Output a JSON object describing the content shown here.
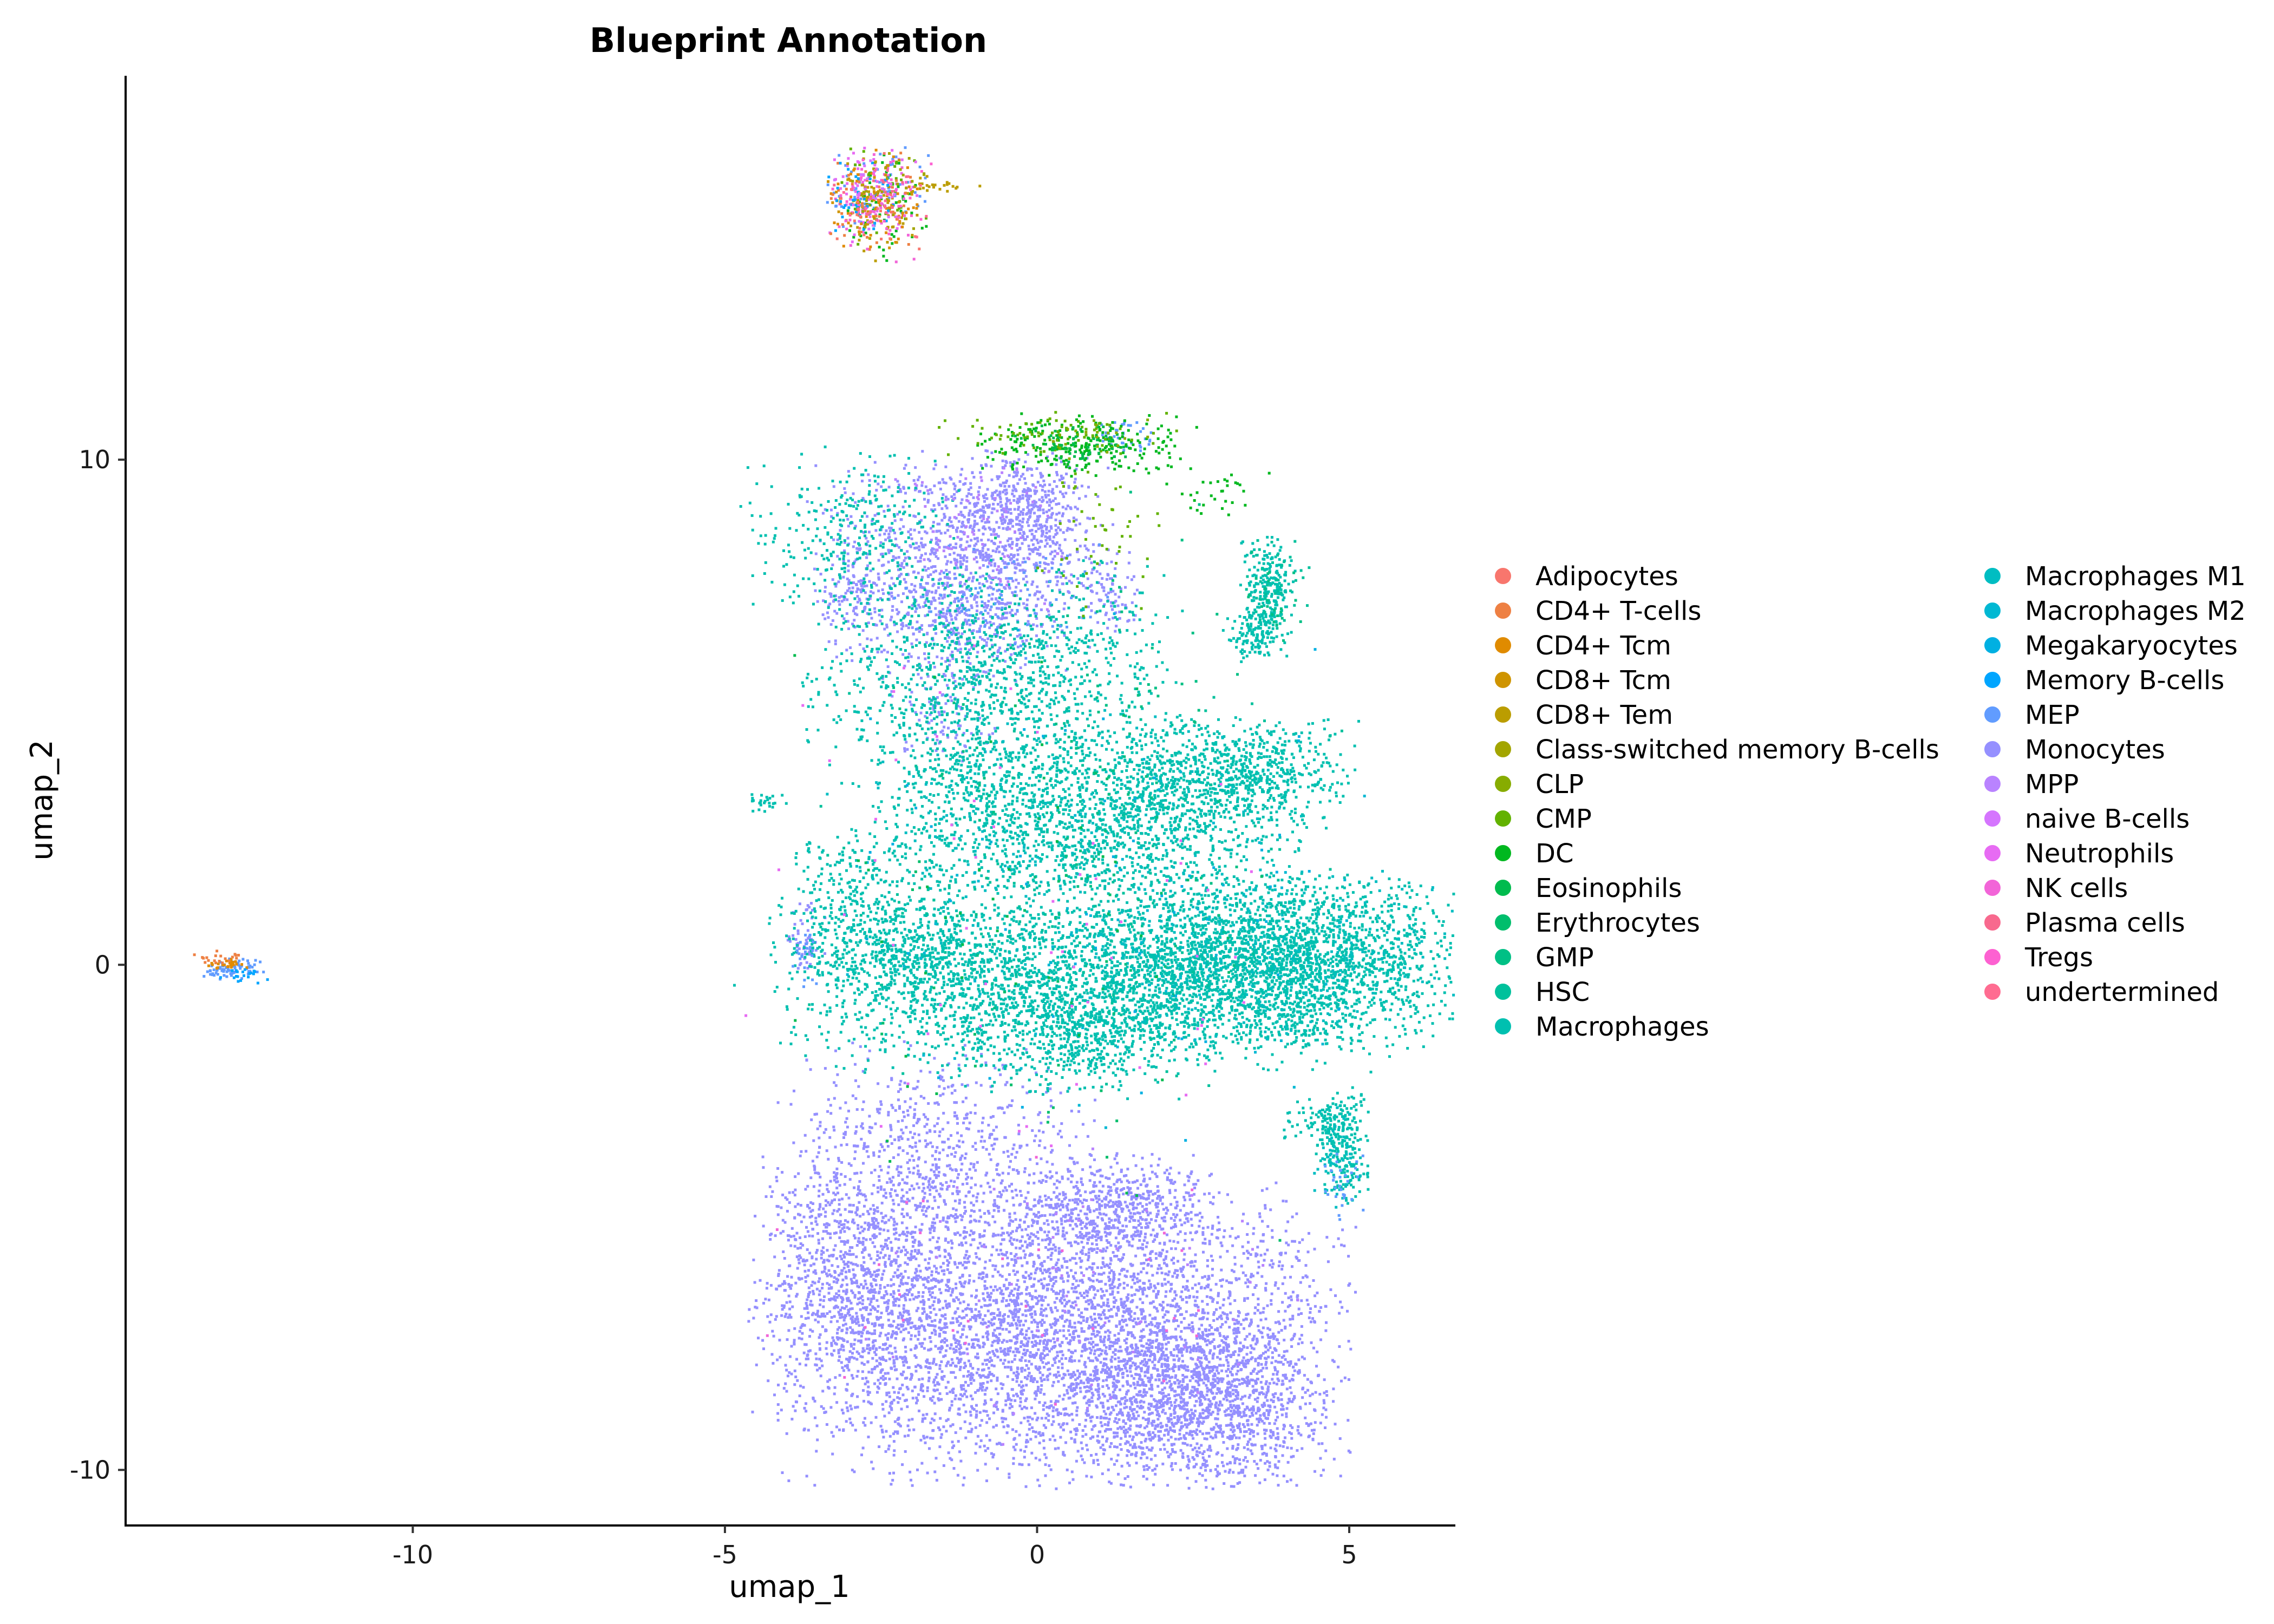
{
  "chart_data": {
    "type": "scatter",
    "title": "Blueprint Annotation",
    "xlabel": "umap_1",
    "ylabel": "umap_2",
    "xlim": [
      -14.6,
      6.7
    ],
    "ylim": [
      -11.1,
      17.6
    ],
    "x_ticks": [
      {
        "value": -10,
        "label": "-10"
      },
      {
        "value": -5,
        "label": "-5"
      },
      {
        "value": 0,
        "label": "0"
      },
      {
        "value": 5,
        "label": "5"
      }
    ],
    "y_ticks": [
      {
        "value": 10,
        "label": "10"
      },
      {
        "value": 0,
        "label": "0"
      },
      {
        "value": -10,
        "label": "-10"
      }
    ],
    "grid": false,
    "legend_position": "right",
    "legend_columns": 2,
    "legend": [
      {
        "label": "Adipocytes",
        "color": "#F8766D"
      },
      {
        "label": "CD4+ T-cells",
        "color": "#EE8043"
      },
      {
        "label": "CD4+ Tcm",
        "color": "#E08B00"
      },
      {
        "label": "CD8+ Tcm",
        "color": "#CF9400"
      },
      {
        "label": "CD8+ Tem",
        "color": "#BB9D00"
      },
      {
        "label": "Class-switched memory B-cells",
        "color": "#A3A500"
      },
      {
        "label": "CLP",
        "color": "#87AC00"
      },
      {
        "label": "CMP",
        "color": "#62B200"
      },
      {
        "label": "DC",
        "color": "#00B81F"
      },
      {
        "label": "Eosinophils",
        "color": "#00BB4E"
      },
      {
        "label": "Erythrocytes",
        "color": "#00BE6C"
      },
      {
        "label": "GMP",
        "color": "#00C085"
      },
      {
        "label": "HSC",
        "color": "#00C19C"
      },
      {
        "label": "Macrophages",
        "color": "#00C0B0"
      },
      {
        "label": "Macrophages M1",
        "color": "#00BDC2"
      },
      {
        "label": "Macrophages M2",
        "color": "#00B8D3"
      },
      {
        "label": "Megakaryocytes",
        "color": "#00B0E2"
      },
      {
        "label": "Memory B-cells",
        "color": "#00A5FF"
      },
      {
        "label": "MEP",
        "color": "#619CFF"
      },
      {
        "label": "Monocytes",
        "color": "#9590FF"
      },
      {
        "label": "MPP",
        "color": "#B983FF"
      },
      {
        "label": "naive B-cells",
        "color": "#D575FE"
      },
      {
        "label": "Neutrophils",
        "color": "#E76BF3"
      },
      {
        "label": "NK cells",
        "color": "#F265D8"
      },
      {
        "label": "Plasma cells",
        "color": "#F8698E"
      },
      {
        "label": "Tregs",
        "color": "#FD61D1"
      },
      {
        "label": "undertermined",
        "color": "#FF6C91"
      }
    ],
    "series": [
      {
        "name": "Monocytes",
        "clusters": [
          {
            "cx": 0.5,
            "cy": -7.3,
            "sx": 2.1,
            "sy": 1.4,
            "n": 4200
          },
          {
            "cx": 2.7,
            "cy": -8.6,
            "sx": 0.9,
            "sy": 0.8,
            "n": 1200
          },
          {
            "cx": -2.9,
            "cy": -6.4,
            "sx": 0.8,
            "sy": 1.3,
            "n": 1000
          },
          {
            "cx": -1.6,
            "cy": -3.7,
            "sx": 1.2,
            "sy": 1.0,
            "n": 700
          },
          {
            "cx": 1.3,
            "cy": -4.8,
            "sx": 0.8,
            "sy": 0.5,
            "n": 500
          },
          {
            "cx": -1.2,
            "cy": 8.2,
            "sx": 1.1,
            "sy": 0.9,
            "n": 900
          },
          {
            "cx": -0.2,
            "cy": 8.9,
            "sx": 0.5,
            "sy": 0.6,
            "n": 400
          },
          {
            "cx": -1.4,
            "cy": 6.7,
            "sx": 0.9,
            "sy": 0.6,
            "n": 300
          },
          {
            "cx": -3.0,
            "cy": 7.2,
            "sx": 0.2,
            "sy": 0.5,
            "n": 80
          },
          {
            "cx": 1.2,
            "cy": 7.4,
            "sx": 0.2,
            "sy": 0.4,
            "n": 70
          },
          {
            "cx": -3.7,
            "cy": 0.4,
            "sx": 0.15,
            "sy": 0.4,
            "n": 60
          },
          {
            "cx": -1.5,
            "cy": 4.9,
            "sx": 0.4,
            "sy": 0.4,
            "n": 80
          }
        ]
      },
      {
        "name": "Macrophages",
        "clusters": [
          {
            "cx": 3.9,
            "cy": 0.1,
            "sx": 1.3,
            "sy": 0.8,
            "n": 2200
          },
          {
            "cx": 0.8,
            "cy": -0.4,
            "sx": 2.3,
            "sy": 0.8,
            "n": 2400
          },
          {
            "cx": 0.8,
            "cy": 2.9,
            "sx": 1.6,
            "sy": 0.9,
            "n": 1600
          },
          {
            "cx": -0.7,
            "cy": 5.7,
            "sx": 1.4,
            "sy": 1.1,
            "n": 1200
          },
          {
            "cx": 3.2,
            "cy": 3.8,
            "sx": 0.9,
            "sy": 0.5,
            "n": 700
          },
          {
            "cx": -2.8,
            "cy": 1.1,
            "sx": 0.7,
            "sy": 0.8,
            "n": 350
          },
          {
            "cx": -1.8,
            "cy": 0.2,
            "sx": 1.0,
            "sy": 0.5,
            "n": 400
          },
          {
            "cx": 0.6,
            "cy": -1.6,
            "sx": 0.9,
            "sy": 0.5,
            "n": 350
          },
          {
            "cx": 3.7,
            "cy": 7.3,
            "sx": 0.2,
            "sy": 0.55,
            "n": 260
          },
          {
            "cx": 3.4,
            "cy": 6.5,
            "sx": 0.2,
            "sy": 0.3,
            "n": 80
          },
          {
            "cx": 4.9,
            "cy": -3.6,
            "sx": 0.2,
            "sy": 0.55,
            "n": 220
          },
          {
            "cx": 4.5,
            "cy": -3.1,
            "sx": 0.3,
            "sy": 0.2,
            "n": 70
          },
          {
            "cx": -4.3,
            "cy": 3.2,
            "sx": 0.15,
            "sy": 0.1,
            "n": 25
          },
          {
            "cx": -3.0,
            "cy": 8.5,
            "sx": 0.8,
            "sy": 0.8,
            "n": 300
          }
        ]
      },
      {
        "name": "Macrophages M1",
        "clusters": [
          {
            "cx": 3.8,
            "cy": 0.2,
            "sx": 1.4,
            "sy": 0.8,
            "n": 300
          },
          {
            "cx": 0.5,
            "cy": 2.5,
            "sx": 1.8,
            "sy": 1.4,
            "n": 250
          },
          {
            "cx": 4.8,
            "cy": -3.8,
            "sx": 0.2,
            "sy": 0.5,
            "n": 40
          }
        ]
      },
      {
        "name": "HSC",
        "clusters": [
          {
            "cx": 0.6,
            "cy": 1.5,
            "sx": 2.0,
            "sy": 2.0,
            "n": 200
          },
          {
            "cx": 3.8,
            "cy": 7.5,
            "sx": 0.3,
            "sy": 0.5,
            "n": 40
          }
        ]
      },
      {
        "name": "MEP",
        "clusters": [
          {
            "cx": -12.9,
            "cy": -0.1,
            "sx": 0.25,
            "sy": 0.1,
            "n": 70
          },
          {
            "cx": -0.6,
            "cy": 7.2,
            "sx": 0.8,
            "sy": 0.6,
            "n": 80
          },
          {
            "cx": 4.9,
            "cy": -4.4,
            "sx": 0.15,
            "sy": 0.3,
            "n": 30
          },
          {
            "cx": -3.7,
            "cy": 0.2,
            "sx": 0.1,
            "sy": 0.3,
            "n": 20
          },
          {
            "cx": 1.4,
            "cy": 10.5,
            "sx": 0.3,
            "sy": 0.15,
            "n": 40
          },
          {
            "cx": -2.6,
            "cy": 15.3,
            "sx": 0.4,
            "sy": 0.4,
            "n": 80
          }
        ]
      },
      {
        "name": "DC",
        "clusters": [
          {
            "cx": 0.8,
            "cy": 10.3,
            "sx": 0.8,
            "sy": 0.3,
            "n": 260
          },
          {
            "cx": 2.9,
            "cy": 9.3,
            "sx": 0.4,
            "sy": 0.2,
            "n": 30
          },
          {
            "cx": -2.4,
            "cy": 15.0,
            "sx": 0.4,
            "sy": 0.5,
            "n": 50
          }
        ]
      },
      {
        "name": "CMP",
        "clusters": [
          {
            "cx": 0.3,
            "cy": 10.5,
            "sx": 0.9,
            "sy": 0.2,
            "n": 80
          },
          {
            "cx": 0.9,
            "cy": 8.6,
            "sx": 0.5,
            "sy": 0.8,
            "n": 50
          },
          {
            "cx": -2.5,
            "cy": 15.1,
            "sx": 0.35,
            "sy": 0.5,
            "n": 40
          }
        ]
      },
      {
        "name": "Neutrophils",
        "clusters": [
          {
            "cx": -2.6,
            "cy": 15.3,
            "sx": 0.35,
            "sy": 0.45,
            "n": 80
          },
          {
            "cx": -0.5,
            "cy": 1.0,
            "sx": 2.0,
            "sy": 2.5,
            "n": 60
          }
        ]
      },
      {
        "name": "CD4+ Tcm",
        "clusters": [
          {
            "cx": -2.5,
            "cy": 15.2,
            "sx": 0.4,
            "sy": 0.5,
            "n": 60
          },
          {
            "cx": -13.0,
            "cy": 0.0,
            "sx": 0.2,
            "sy": 0.08,
            "n": 25
          }
        ]
      },
      {
        "name": "CD8+ Tem",
        "clusters": [
          {
            "cx": -2.6,
            "cy": 15.0,
            "sx": 0.35,
            "sy": 0.5,
            "n": 50
          },
          {
            "cx": -1.5,
            "cy": 15.4,
            "sx": 0.3,
            "sy": 0.1,
            "n": 25
          }
        ]
      },
      {
        "name": "CD4+ T-cells",
        "clusters": [
          {
            "cx": -2.7,
            "cy": 15.1,
            "sx": 0.35,
            "sy": 0.5,
            "n": 50
          },
          {
            "cx": -13.1,
            "cy": 0.1,
            "sx": 0.2,
            "sy": 0.08,
            "n": 20
          }
        ]
      },
      {
        "name": "NK cells",
        "clusters": [
          {
            "cx": -2.6,
            "cy": 15.0,
            "sx": 0.35,
            "sy": 0.55,
            "n": 40
          },
          {
            "cx": 0.0,
            "cy": -6.5,
            "sx": 2.0,
            "sy": 1.5,
            "n": 30
          }
        ]
      },
      {
        "name": "Memory B-cells",
        "clusters": [
          {
            "cx": -2.8,
            "cy": 15.2,
            "sx": 0.3,
            "sy": 0.4,
            "n": 40
          },
          {
            "cx": -12.7,
            "cy": -0.2,
            "sx": 0.2,
            "sy": 0.08,
            "n": 20
          }
        ]
      },
      {
        "name": "Tregs",
        "clusters": [
          {
            "cx": -2.4,
            "cy": 15.3,
            "sx": 0.4,
            "sy": 0.4,
            "n": 30
          }
        ]
      },
      {
        "name": "Eosinophils",
        "clusters": [
          {
            "cx": 0.6,
            "cy": 10.3,
            "sx": 0.5,
            "sy": 0.2,
            "n": 60
          },
          {
            "cx": -0.5,
            "cy": 1.0,
            "sx": 2.2,
            "sy": 3.0,
            "n": 40
          }
        ]
      },
      {
        "name": "GMP",
        "clusters": [
          {
            "cx": 0.7,
            "cy": 4.0,
            "sx": 1.5,
            "sy": 2.5,
            "n": 120
          },
          {
            "cx": 3.8,
            "cy": 7.2,
            "sx": 0.2,
            "sy": 0.4,
            "n": 20
          }
        ]
      },
      {
        "name": "MPP",
        "clusters": [
          {
            "cx": -0.8,
            "cy": 8.4,
            "sx": 0.7,
            "sy": 0.7,
            "n": 80
          },
          {
            "cx": 0.3,
            "cy": -6.5,
            "sx": 2.0,
            "sy": 1.5,
            "n": 60
          }
        ]
      },
      {
        "name": "Megakaryocytes",
        "clusters": [
          {
            "cx": 1.0,
            "cy": 1.5,
            "sx": 2.0,
            "sy": 2.5,
            "n": 60
          }
        ]
      },
      {
        "name": "Macrophages M2",
        "clusters": [
          {
            "cx": 1.0,
            "cy": 0.5,
            "sx": 2.0,
            "sy": 2.0,
            "n": 60
          }
        ]
      },
      {
        "name": "Erythrocytes",
        "clusters": [
          {
            "cx": 0.3,
            "cy": 1.0,
            "sx": 2.0,
            "sy": 3.0,
            "n": 40
          }
        ]
      },
      {
        "name": "CD8+ Tcm",
        "clusters": [
          {
            "cx": -2.7,
            "cy": 15.0,
            "sx": 0.35,
            "sy": 0.5,
            "n": 30
          }
        ]
      },
      {
        "name": "Class-switched memory B-cells",
        "clusters": [
          {
            "cx": -2.5,
            "cy": 15.2,
            "sx": 0.35,
            "sy": 0.45,
            "n": 25
          }
        ]
      },
      {
        "name": "Adipocytes",
        "clusters": [
          {
            "cx": -2.6,
            "cy": 15.0,
            "sx": 0.35,
            "sy": 0.5,
            "n": 20
          }
        ]
      },
      {
        "name": "naive B-cells",
        "clusters": [
          {
            "cx": -2.7,
            "cy": 15.3,
            "sx": 0.3,
            "sy": 0.4,
            "n": 20
          }
        ]
      },
      {
        "name": "Plasma cells",
        "clusters": [
          {
            "cx": -2.5,
            "cy": 15.2,
            "sx": 0.35,
            "sy": 0.45,
            "n": 15
          }
        ]
      },
      {
        "name": "CLP",
        "clusters": [
          {
            "cx": 0.9,
            "cy": 10.4,
            "sx": 0.4,
            "sy": 0.2,
            "n": 20
          }
        ]
      },
      {
        "name": "undertermined",
        "clusters": [
          {
            "cx": -2.4,
            "cy": 15.1,
            "sx": 0.35,
            "sy": 0.45,
            "n": 15
          }
        ]
      }
    ]
  }
}
